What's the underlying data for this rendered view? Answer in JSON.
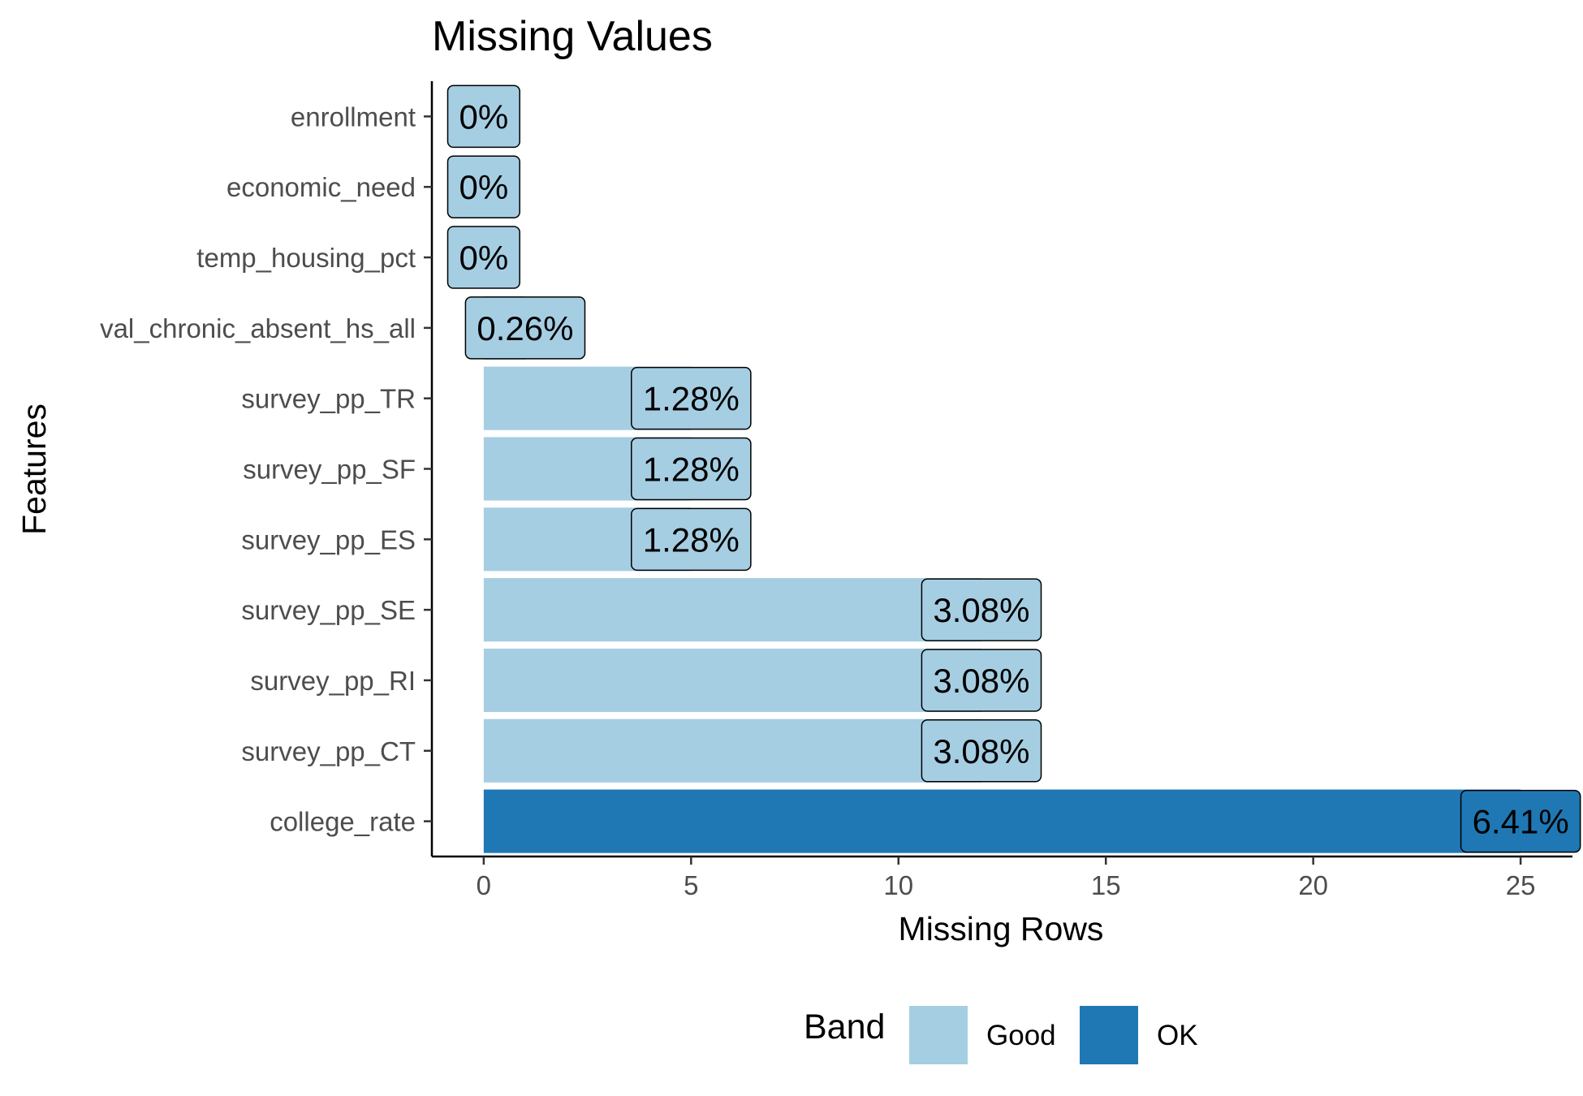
{
  "chart_data": {
    "type": "bar",
    "orientation": "horizontal",
    "title": "Missing Values",
    "xlabel": "Missing Rows",
    "ylabel": "Features",
    "xlim": [
      -1.25,
      26.25
    ],
    "x_ticks": [
      "0",
      "5",
      "10",
      "15",
      "20",
      "25"
    ],
    "grid": false,
    "categories": [
      "enrollment",
      "economic_need",
      "temp_housing_pct",
      "val_chronic_absent_hs_all",
      "survey_pp_TR",
      "survey_pp_SF",
      "survey_pp_ES",
      "survey_pp_SE",
      "survey_pp_RI",
      "survey_pp_CT",
      "college_rate"
    ],
    "values": [
      0,
      0,
      0,
      1,
      5,
      5,
      5,
      12,
      12,
      12,
      25
    ],
    "labels": [
      "0%",
      "0%",
      "0%",
      "0.26%",
      "1.28%",
      "1.28%",
      "1.28%",
      "3.08%",
      "3.08%",
      "3.08%",
      "6.41%"
    ],
    "bands": [
      "Good",
      "Good",
      "Good",
      "Good",
      "Good",
      "Good",
      "Good",
      "Good",
      "Good",
      "Good",
      "OK"
    ],
    "legend": {
      "title": "Band",
      "position": "bottom",
      "items": [
        {
          "label": "Good",
          "color": "#a6cee3"
        },
        {
          "label": "OK",
          "color": "#1f78b4"
        }
      ]
    }
  }
}
